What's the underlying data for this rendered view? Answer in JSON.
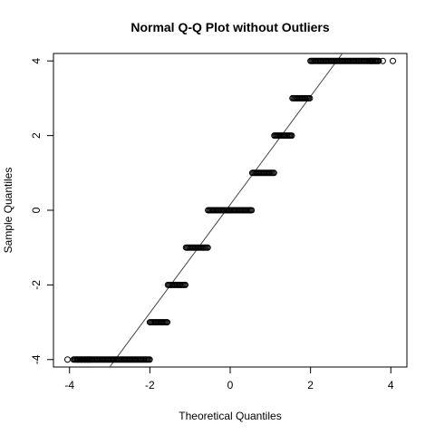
{
  "chart_data": {
    "type": "scatter",
    "title": "Normal Q-Q Plot without Outliers",
    "xlabel": "Theoretical Quantiles",
    "ylabel": "Sample Quantiles",
    "xlim": [
      -4.4,
      4.4
    ],
    "ylim": [
      -4.2,
      4.2
    ],
    "x_ticks": [
      -4,
      -2,
      0,
      2,
      4
    ],
    "y_ticks": [
      -4,
      -2,
      0,
      2,
      4
    ],
    "grid": false,
    "marker": "open-circle",
    "reference_line": {
      "intercept": 0.15,
      "slope": 1.45
    },
    "segments": [
      {
        "y": -4,
        "x_from": -3.9,
        "x_to": -2.0
      },
      {
        "y": -3,
        "x_from": -2.0,
        "x_to": -1.55
      },
      {
        "y": -2,
        "x_from": -1.55,
        "x_to": -1.1
      },
      {
        "y": -1,
        "x_from": -1.1,
        "x_to": -0.55
      },
      {
        "y": 0,
        "x_from": -0.55,
        "x_to": 0.55
      },
      {
        "y": 1,
        "x_from": 0.55,
        "x_to": 1.1
      },
      {
        "y": 2,
        "x_from": 1.1,
        "x_to": 1.55
      },
      {
        "y": 3,
        "x_from": 1.55,
        "x_to": 2.0
      },
      {
        "y": 4,
        "x_from": 2.0,
        "x_to": 3.7
      }
    ],
    "outer_points": [
      {
        "x": -4.05,
        "y": -4
      },
      {
        "x": -3.8,
        "y": -4
      },
      {
        "x": -3.7,
        "y": -4
      },
      {
        "x": -3.62,
        "y": -4
      },
      {
        "x": -3.55,
        "y": -4
      },
      {
        "x": -3.5,
        "y": -4
      },
      {
        "x": 3.5,
        "y": 4
      },
      {
        "x": 3.55,
        "y": 4
      },
      {
        "x": 3.62,
        "y": 4
      },
      {
        "x": 3.7,
        "y": 4
      },
      {
        "x": 3.8,
        "y": 4
      },
      {
        "x": 4.05,
        "y": 4
      }
    ]
  }
}
